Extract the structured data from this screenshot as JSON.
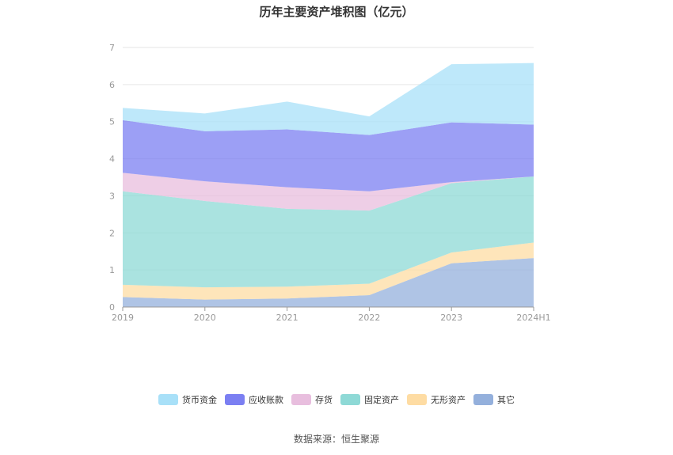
{
  "title": "历年主要资产堆积图（亿元）",
  "source": "数据来源：恒生聚源",
  "chart_data": {
    "type": "area",
    "stacked": true,
    "title": "历年主要资产堆积图（亿元）",
    "x": [
      "2019",
      "2020",
      "2021",
      "2022",
      "2023",
      "2024H1"
    ],
    "ylim": [
      0,
      7
    ],
    "yticks": [
      "0",
      "1",
      "2",
      "3",
      "4",
      "5",
      "6",
      "7"
    ],
    "grid": true,
    "legend_position": "bottom",
    "series": [
      {
        "name": "货币资金",
        "color": "#a8e0f8",
        "values": [
          0.33,
          0.48,
          0.75,
          0.5,
          1.57,
          1.66
        ]
      },
      {
        "name": "应收账款",
        "color": "#7b7ff2",
        "values": [
          1.42,
          1.35,
          1.56,
          1.52,
          1.61,
          1.4
        ]
      },
      {
        "name": "存货",
        "color": "#e8bede",
        "values": [
          0.5,
          0.53,
          0.58,
          0.52,
          0.03,
          0.0
        ]
      },
      {
        "name": "固定资产",
        "color": "#8ed9d6",
        "values": [
          2.52,
          2.33,
          2.1,
          1.97,
          1.87,
          1.78
        ]
      },
      {
        "name": "无形资产",
        "color": "#fedca3",
        "values": [
          0.33,
          0.33,
          0.32,
          0.31,
          0.29,
          0.42
        ]
      },
      {
        "name": "其它",
        "color": "#94b0dc",
        "values": [
          0.27,
          0.2,
          0.23,
          0.32,
          1.18,
          1.32
        ]
      }
    ]
  }
}
